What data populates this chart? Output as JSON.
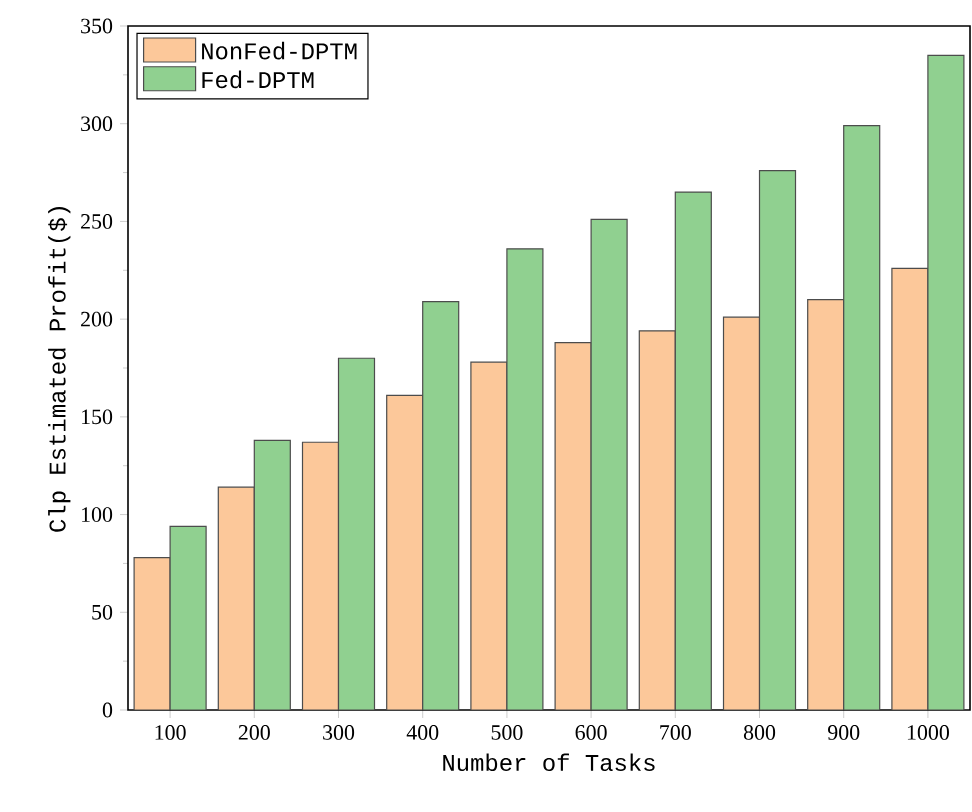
{
  "chart_data": {
    "type": "bar",
    "xlabel": "Number of Tasks",
    "ylabel": "Clp Estimated Profit($)",
    "categories": [
      "100",
      "200",
      "300",
      "400",
      "500",
      "600",
      "700",
      "800",
      "900",
      "1000"
    ],
    "series": [
      {
        "name": "NonFed-DPTM",
        "color": "#fcc89a",
        "values": [
          78,
          114,
          137,
          161,
          178,
          188,
          194,
          201,
          210,
          226
        ]
      },
      {
        "name": "Fed-DPTM",
        "color": "#90d090",
        "values": [
          94,
          138,
          180,
          209,
          236,
          251,
          265,
          276,
          299,
          335
        ]
      }
    ],
    "ylim": [
      0,
      350
    ],
    "yticks": [
      0,
      50,
      100,
      150,
      200,
      250,
      300,
      350
    ],
    "legend": "top left"
  }
}
